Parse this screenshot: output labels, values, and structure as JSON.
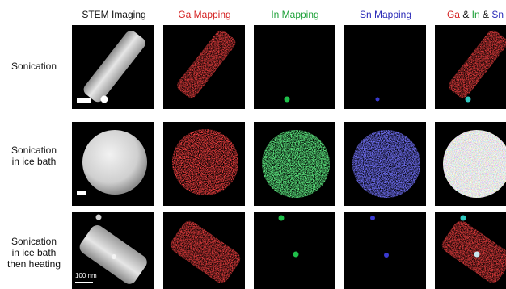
{
  "headers": {
    "stem": "STEM Imaging",
    "ga": "Ga Mapping",
    "in": "In Mapping",
    "sn": "Sn Mapping",
    "merge_ga": "Ga",
    "merge_amp1": " & ",
    "merge_in": "In",
    "merge_amp2": " & ",
    "merge_sn": "Sn"
  },
  "rows": [
    {
      "label_lines": [
        "Sonication"
      ]
    },
    {
      "label_lines": [
        "Sonication",
        "in ice bath"
      ]
    },
    {
      "label_lines": [
        "Sonication",
        "in ice bath",
        "then heating"
      ]
    }
  ],
  "scale_label": "100 nm",
  "colors": {
    "ga": "#d42020",
    "in": "#1fa23a",
    "sn": "#2a2ab8",
    "text": "#111111"
  }
}
